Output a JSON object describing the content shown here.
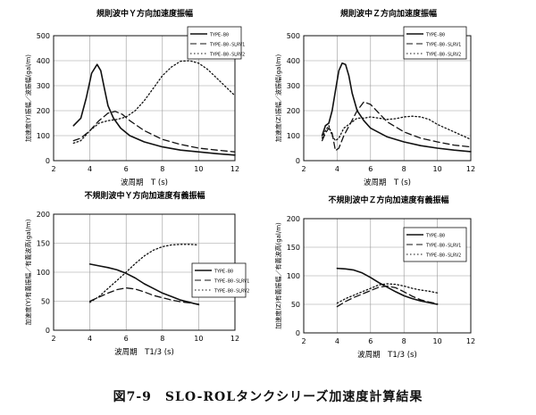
{
  "figure_caption": "図7-9　SLO-ROLタンクシリーズ加速度計算結果",
  "chart_data": [
    {
      "type": "line",
      "title": "規則波中Ｙ方向加速度振幅",
      "xlabel": "波周期　T (s)",
      "ylabel": "加速度(Y)振幅／波振幅(gal/m)",
      "xlim": [
        2,
        12
      ],
      "ylim": [
        0,
        500
      ],
      "xticks": [
        2,
        4,
        6,
        8,
        10,
        12
      ],
      "yticks": [
        0,
        100,
        200,
        300,
        400,
        500
      ],
      "grid": true,
      "legend_position": "top-right",
      "series": [
        {
          "name": "TYPE-B0",
          "style": "solid",
          "x": [
            3.1,
            3.5,
            3.8,
            4.1,
            4.4,
            4.6,
            4.8,
            5.0,
            5.3,
            5.7,
            6.2,
            7.0,
            8.0,
            9.0,
            10.0,
            11.0,
            12.0
          ],
          "y": [
            140,
            170,
            250,
            350,
            385,
            360,
            290,
            220,
            170,
            130,
            100,
            75,
            55,
            42,
            35,
            28,
            22
          ]
        },
        {
          "name": "TYPE-B0-SLRV1",
          "style": "dashed",
          "x": [
            3.1,
            3.5,
            4.0,
            4.5,
            5.0,
            5.4,
            5.8,
            6.2,
            7.0,
            8.0,
            9.0,
            10.0,
            11.0,
            12.0
          ],
          "y": [
            80,
            90,
            120,
            160,
            190,
            197,
            185,
            160,
            120,
            85,
            65,
            50,
            42,
            35
          ]
        },
        {
          "name": "TYPE-B0-SLRV2",
          "style": "dotted",
          "x": [
            3.1,
            3.5,
            4.0,
            4.5,
            5.0,
            5.5,
            6.0,
            6.5,
            7.0,
            7.5,
            8.0,
            8.5,
            9.0,
            9.5,
            10.0,
            10.5,
            11.0,
            11.5,
            12.0
          ],
          "y": [
            70,
            80,
            120,
            150,
            160,
            165,
            175,
            200,
            240,
            290,
            340,
            375,
            398,
            400,
            390,
            365,
            330,
            295,
            260
          ]
        }
      ]
    },
    {
      "type": "line",
      "title": "規則波中Ｚ方向加速度振幅",
      "xlabel": "波周期　T (s)",
      "ylabel": "加速度(Z)振幅／波振幅(gal/m)",
      "xlim": [
        2,
        12
      ],
      "ylim": [
        0,
        500
      ],
      "xticks": [
        2,
        4,
        6,
        8,
        10,
        12
      ],
      "yticks": [
        0,
        100,
        200,
        300,
        400,
        500
      ],
      "grid": true,
      "legend_position": "top-right",
      "series": [
        {
          "name": "TYPE-B0",
          "style": "solid",
          "x": [
            3.1,
            3.3,
            3.5,
            3.7,
            3.9,
            4.1,
            4.3,
            4.5,
            4.7,
            4.9,
            5.2,
            5.6,
            6.0,
            7.0,
            8.0,
            9.0,
            10.0,
            11.0,
            12.0
          ],
          "y": [
            100,
            140,
            150,
            200,
            280,
            360,
            390,
            385,
            340,
            270,
            200,
            160,
            130,
            95,
            75,
            60,
            50,
            42,
            36
          ]
        },
        {
          "name": "TYPE-B0-SLRV1",
          "style": "dashed",
          "x": [
            3.1,
            3.3,
            3.5,
            3.7,
            3.9,
            4.1,
            4.4,
            4.8,
            5.2,
            5.6,
            6.0,
            6.5,
            7.0,
            8.0,
            9.0,
            10.0,
            11.0,
            12.0
          ],
          "y": [
            80,
            110,
            130,
            110,
            40,
            50,
            100,
            150,
            200,
            235,
            225,
            190,
            155,
            115,
            90,
            75,
            62,
            55
          ]
        },
        {
          "name": "TYPE-B0-SLRV2",
          "style": "dotted",
          "x": [
            3.1,
            3.3,
            3.5,
            3.7,
            3.9,
            4.1,
            4.4,
            4.8,
            5.2,
            5.6,
            6.0,
            6.5,
            7.0,
            7.5,
            8.0,
            8.5,
            9.0,
            9.5,
            10.0,
            11.0,
            12.0
          ],
          "y": [
            90,
            120,
            140,
            100,
            80,
            90,
            130,
            150,
            170,
            170,
            175,
            170,
            165,
            168,
            175,
            178,
            175,
            165,
            145,
            115,
            85
          ]
        }
      ]
    },
    {
      "type": "line",
      "title": "不規則波中Ｙ方向加速度有義振幅",
      "xlabel": "波周期　T1/3 (s)",
      "ylabel": "加速度(Y)有義振幅／有義波高(gal/m)",
      "xlim": [
        2,
        12
      ],
      "ylim": [
        0,
        200
      ],
      "xticks": [
        2,
        4,
        6,
        8,
        10,
        12
      ],
      "yticks": [
        0,
        50,
        100,
        150,
        200
      ],
      "grid": true,
      "legend_position": "right",
      "series": [
        {
          "name": "TYPE-B0",
          "style": "solid",
          "x": [
            4,
            4.5,
            5,
            5.5,
            6,
            6.5,
            7,
            7.5,
            8,
            8.5,
            9,
            9.5,
            10
          ],
          "y": [
            114,
            111,
            108,
            104,
            98,
            90,
            80,
            72,
            64,
            58,
            52,
            48,
            44
          ]
        },
        {
          "name": "TYPE-B0-SLRV1",
          "style": "dashed",
          "x": [
            4,
            4.5,
            5,
            5.5,
            6,
            6.5,
            7,
            7.5,
            8,
            8.5,
            9,
            9.5,
            10
          ],
          "y": [
            50,
            57,
            64,
            70,
            73,
            71,
            66,
            60,
            56,
            52,
            49,
            47,
            45
          ]
        },
        {
          "name": "TYPE-B0-SLRV2",
          "style": "dotted",
          "x": [
            4,
            4.5,
            5,
            5.5,
            6,
            6.5,
            7,
            7.5,
            8,
            8.5,
            9,
            9.5,
            10
          ],
          "y": [
            48,
            58,
            72,
            86,
            100,
            115,
            128,
            138,
            144,
            147,
            148,
            148,
            147
          ]
        }
      ]
    },
    {
      "type": "line",
      "title": "不規則波中Ｚ方向加速度有義振幅",
      "xlabel": "波周期　T1/3 (s)",
      "ylabel": "加速度(Z)有義振幅／有義波高(gal/m)",
      "xlim": [
        2,
        12
      ],
      "ylim": [
        0,
        200
      ],
      "xticks": [
        2,
        4,
        6,
        8,
        10,
        12
      ],
      "yticks": [
        0,
        50,
        100,
        150,
        200
      ],
      "grid": true,
      "legend_position": "top-right",
      "series": [
        {
          "name": "TYPE-B0",
          "style": "solid",
          "x": [
            4,
            4.5,
            5,
            5.5,
            6,
            6.5,
            7,
            7.5,
            8,
            8.5,
            9,
            9.5,
            10
          ],
          "y": [
            113,
            112,
            110,
            105,
            97,
            88,
            80,
            72,
            65,
            60,
            56,
            53,
            50
          ]
        },
        {
          "name": "TYPE-B0-SLRV1",
          "style": "dashed",
          "x": [
            4,
            4.5,
            5,
            5.5,
            6,
            6.5,
            7,
            7.5,
            8,
            8.5,
            9,
            9.5,
            10
          ],
          "y": [
            46,
            55,
            62,
            68,
            74,
            80,
            82,
            79,
            72,
            64,
            58,
            54,
            51
          ]
        },
        {
          "name": "TYPE-B0-SLRV2",
          "style": "dotted",
          "x": [
            4,
            4.5,
            5,
            5.5,
            6,
            6.5,
            7,
            7.5,
            8,
            8.5,
            9,
            9.5,
            10
          ],
          "y": [
            52,
            60,
            66,
            72,
            78,
            84,
            86,
            85,
            82,
            78,
            75,
            73,
            70
          ]
        }
      ]
    }
  ]
}
